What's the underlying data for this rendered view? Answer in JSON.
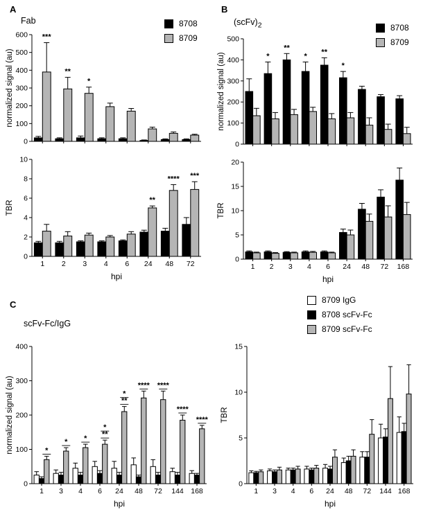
{
  "panels": {
    "A": {
      "label": "A",
      "title": "Fab",
      "legend": [
        {
          "label": "8708",
          "color": "#000000"
        },
        {
          "label": "8709",
          "color": "#b5b5b5"
        }
      ]
    },
    "B": {
      "label": "B",
      "title_main": "(scFv)",
      "title_sub": "2",
      "legend": [
        {
          "label": "8708",
          "color": "#000000"
        },
        {
          "label": "8709",
          "color": "#b5b5b5"
        }
      ]
    },
    "C": {
      "label": "C",
      "title": "scFv-Fc/IgG",
      "legend": [
        {
          "label": "8709 IgG",
          "color": "#ffffff"
        },
        {
          "label": "8708 scFv-Fc",
          "color": "#000000"
        },
        {
          "label": "8709 scFv-Fc",
          "color": "#b5b5b5"
        }
      ]
    }
  },
  "chart_data": [
    {
      "id": "A-signal",
      "panel": "A",
      "type": "bar",
      "title": "Fab",
      "ylabel": "normalized signal (au)",
      "xlabel": "",
      "xticklabels": false,
      "ylim": [
        0,
        600
      ],
      "yticks": [
        0,
        100,
        200,
        300,
        400,
        500,
        600
      ],
      "grid": false,
      "legend_position": "top-right",
      "categories": [
        "1",
        "2",
        "3",
        "4",
        "6",
        "24",
        "48",
        "72"
      ],
      "series": [
        {
          "name": "8708",
          "color": "#000000",
          "values": [
            20,
            15,
            20,
            15,
            15,
            5,
            10,
            10
          ],
          "errors": [
            8,
            5,
            10,
            5,
            5,
            3,
            4,
            4
          ],
          "sig": [
            "",
            "",
            "",
            "",
            "",
            "",
            "",
            ""
          ]
        },
        {
          "name": "8709",
          "color": "#b5b5b5",
          "values": [
            390,
            295,
            270,
            195,
            170,
            70,
            45,
            35
          ],
          "errors": [
            165,
            65,
            35,
            20,
            15,
            10,
            8,
            5
          ],
          "sig": [
            "***",
            "**",
            "*",
            "",
            "",
            "",
            "",
            ""
          ]
        }
      ]
    },
    {
      "id": "A-tbr",
      "panel": "A",
      "type": "bar",
      "ylabel": "TBR",
      "xlabel": "hpi",
      "xticklabels": true,
      "ylim": [
        0,
        10
      ],
      "yticks": [
        0,
        2,
        4,
        6,
        8,
        10
      ],
      "grid": false,
      "categories": [
        "1",
        "2",
        "3",
        "4",
        "6",
        "24",
        "48",
        "72"
      ],
      "series": [
        {
          "name": "8708",
          "color": "#000000",
          "values": [
            1.4,
            1.4,
            1.5,
            1.5,
            1.6,
            2.5,
            2.6,
            3.3
          ],
          "errors": [
            0.15,
            0.15,
            0.1,
            0.1,
            0.1,
            0.2,
            0.3,
            0.7
          ],
          "sig": [
            "",
            "",
            "",
            "",
            "",
            "",
            "",
            ""
          ]
        },
        {
          "name": "8709",
          "color": "#b5b5b5",
          "values": [
            2.6,
            2.1,
            2.2,
            2.0,
            2.3,
            5.0,
            6.8,
            6.9
          ],
          "errors": [
            0.7,
            0.45,
            0.2,
            0.15,
            0.25,
            0.2,
            0.6,
            0.8
          ],
          "sig": [
            "",
            "",
            "",
            "",
            "",
            "**",
            "****",
            "***"
          ]
        }
      ]
    },
    {
      "id": "B-signal",
      "panel": "B",
      "type": "bar",
      "title": "(scFv)2",
      "ylabel": "normalized signal (au)",
      "xlabel": "",
      "xticklabels": false,
      "ylim": [
        0,
        500
      ],
      "yticks": [
        0,
        100,
        200,
        300,
        400,
        500
      ],
      "grid": false,
      "legend_position": "top-right",
      "categories": [
        "1",
        "2",
        "3",
        "4",
        "6",
        "24",
        "48",
        "72",
        "168"
      ],
      "series": [
        {
          "name": "8708",
          "color": "#000000",
          "values": [
            250,
            335,
            400,
            345,
            375,
            315,
            260,
            225,
            215
          ],
          "errors": [
            60,
            55,
            30,
            45,
            35,
            30,
            15,
            10,
            15
          ],
          "sig": [
            "",
            "*",
            "**",
            "*",
            "**",
            "*",
            "",
            "",
            ""
          ]
        },
        {
          "name": "8709",
          "color": "#b5b5b5",
          "values": [
            135,
            120,
            140,
            155,
            120,
            125,
            90,
            70,
            50
          ],
          "errors": [
            35,
            30,
            25,
            20,
            25,
            25,
            35,
            25,
            30
          ],
          "sig": [
            "",
            "",
            "",
            "",
            "",
            "",
            "",
            "",
            ""
          ]
        }
      ]
    },
    {
      "id": "B-tbr",
      "panel": "B",
      "type": "bar",
      "ylabel": "TBR",
      "xlabel": "hpi",
      "xticklabels": true,
      "ylim": [
        0,
        20
      ],
      "yticks": [
        0,
        5,
        10,
        15,
        20
      ],
      "grid": false,
      "categories": [
        "1",
        "2",
        "3",
        "4",
        "6",
        "24",
        "48",
        "72",
        "168"
      ],
      "series": [
        {
          "name": "8708",
          "color": "#000000",
          "values": [
            1.5,
            1.5,
            1.4,
            1.5,
            1.5,
            5.5,
            10.3,
            12.8,
            16.3
          ],
          "errors": [
            0.2,
            0.2,
            0.15,
            0.2,
            0.2,
            0.7,
            1.2,
            1.5,
            2.5
          ],
          "sig": []
        },
        {
          "name": "8709",
          "color": "#b5b5b5",
          "values": [
            1.3,
            1.2,
            1.3,
            1.4,
            1.3,
            5.0,
            7.8,
            8.7,
            9.2
          ],
          "errors": [
            0.15,
            0.15,
            0.15,
            0.2,
            0.15,
            1.0,
            1.5,
            2.3,
            2.5
          ],
          "sig": []
        }
      ]
    },
    {
      "id": "C-signal",
      "panel": "C",
      "type": "bar",
      "title": "scFv-Fc/IgG",
      "ylabel": "normalized signal (au)",
      "xlabel": "hpi",
      "xticklabels": true,
      "ylim": [
        0,
        400
      ],
      "yticks": [
        0,
        100,
        200,
        300,
        400
      ],
      "grid": false,
      "sig_underline": true,
      "legend_position": "top-right",
      "categories": [
        "1",
        "3",
        "4",
        "6",
        "24",
        "48",
        "72",
        "144",
        "168"
      ],
      "series": [
        {
          "name": "8709 IgG",
          "color": "#ffffff",
          "values": [
            25,
            30,
            45,
            50,
            45,
            55,
            50,
            35,
            30
          ],
          "errors": [
            10,
            10,
            15,
            15,
            20,
            20,
            20,
            10,
            8
          ],
          "sig": []
        },
        {
          "name": "8708 scFv-Fc",
          "color": "#000000",
          "values": [
            15,
            25,
            25,
            30,
            25,
            20,
            25,
            25,
            25
          ],
          "errors": [
            5,
            8,
            8,
            8,
            8,
            5,
            8,
            8,
            5
          ],
          "sig": []
        },
        {
          "name": "8709 scFv-Fc",
          "color": "#b5b5b5",
          "values": [
            70,
            95,
            105,
            115,
            210,
            250,
            245,
            185,
            160
          ],
          "errors": [
            10,
            10,
            10,
            12,
            15,
            20,
            25,
            15,
            10
          ],
          "sig": [
            "*",
            "*",
            "*",
            [
              "*",
              "**"
            ],
            [
              "*",
              "**"
            ],
            "****",
            "****",
            "****",
            "****"
          ]
        }
      ]
    },
    {
      "id": "C-tbr",
      "panel": "C",
      "type": "bar",
      "ylabel": "TBR",
      "xlabel": "hpi",
      "xticklabels": true,
      "ylim": [
        0,
        15
      ],
      "yticks": [
        0,
        5,
        10,
        15
      ],
      "grid": false,
      "categories": [
        "1",
        "3",
        "4",
        "6",
        "24",
        "48",
        "72",
        "144",
        "168"
      ],
      "series": [
        {
          "name": "8709 IgG",
          "color": "#ffffff",
          "values": [
            1.2,
            1.4,
            1.5,
            1.6,
            1.7,
            2.3,
            2.9,
            5.0,
            5.6
          ],
          "errors": [
            0.2,
            0.2,
            0.2,
            0.3,
            0.4,
            0.5,
            0.6,
            1.5,
            1.7
          ],
          "sig": []
        },
        {
          "name": "8708 scFv-Fc",
          "color": "#000000",
          "values": [
            1.2,
            1.3,
            1.5,
            1.5,
            1.6,
            2.5,
            2.9,
            5.1,
            5.7
          ],
          "errors": [
            0.15,
            0.2,
            0.2,
            0.2,
            0.3,
            0.5,
            0.6,
            0.9,
            0.9
          ],
          "sig": []
        },
        {
          "name": "8709 scFv-Fc",
          "color": "#b5b5b5",
          "values": [
            1.3,
            1.5,
            1.6,
            1.7,
            2.9,
            3.0,
            5.4,
            9.3,
            9.8
          ],
          "errors": [
            0.2,
            0.3,
            0.3,
            0.3,
            0.8,
            0.7,
            1.6,
            3.5,
            3.2
          ],
          "sig": []
        }
      ]
    }
  ]
}
